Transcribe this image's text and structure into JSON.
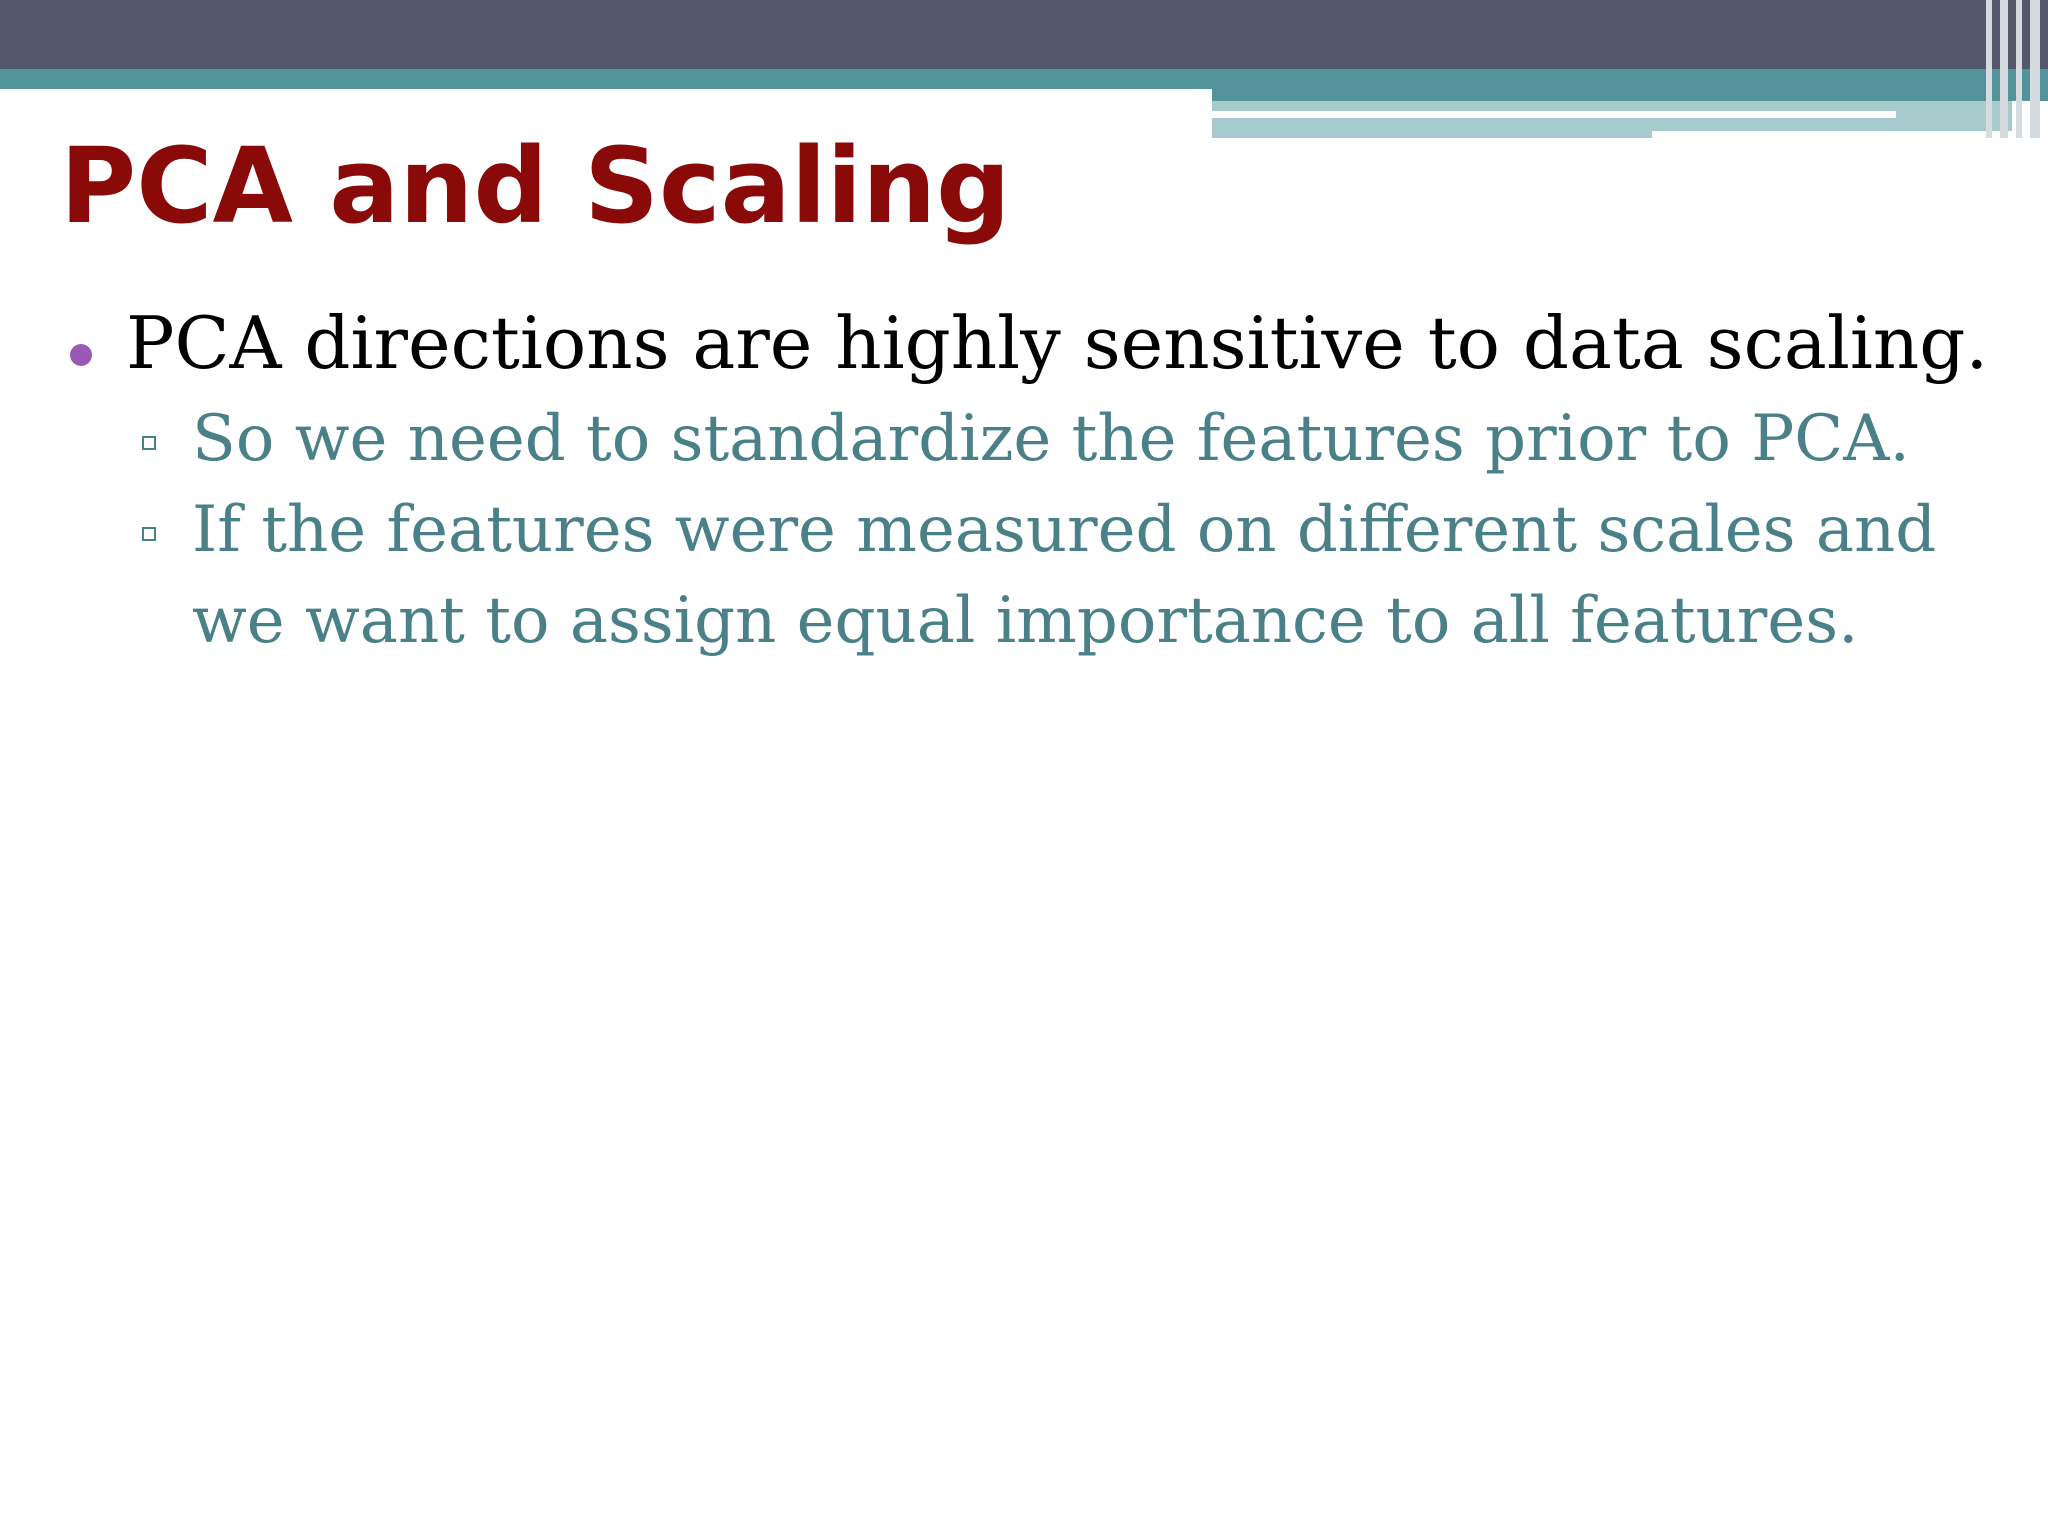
{
  "slide": {
    "title": "PCA and Scaling",
    "bullets": [
      {
        "text": "PCA directions are highly sensitive to data scaling.",
        "sub_bullets": [
          {
            "lines": [
              "So we need to standardize the features prior to PCA."
            ]
          },
          {
            "lines": [
              "If the features were measured on different scales and",
              "we want to assign equal importance to all features."
            ]
          }
        ]
      }
    ]
  },
  "colors": {
    "title": "#8a0a0a",
    "header_dark": "#53586b",
    "header_teal": "#52949a",
    "header_teal_light": "#a7cacd",
    "bullet_marker": "#9b59b6",
    "sub_text": "#4a8088"
  }
}
